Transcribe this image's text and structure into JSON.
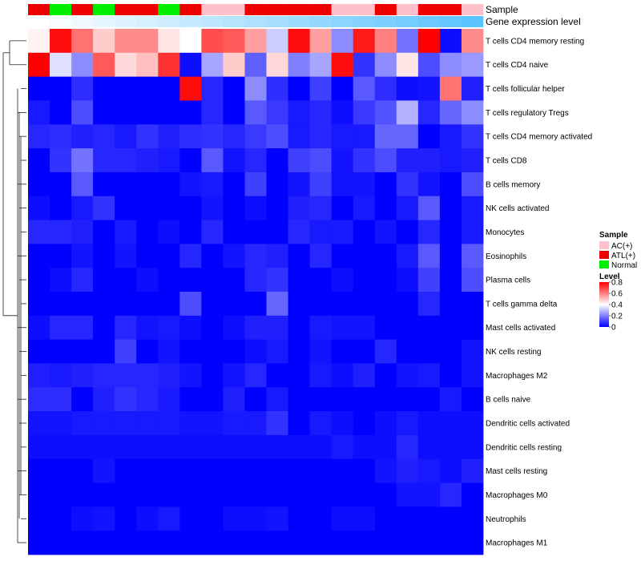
{
  "chart_data": {
    "type": "heatmap",
    "title": "",
    "annotation_rows": [
      {
        "name": "Sample",
        "values": [
          "ATL(+)",
          "Normal",
          "ATL(+)",
          "Normal",
          "ATL(+)",
          "ATL(+)",
          "Normal",
          "ATL(+)",
          "AC(+)",
          "AC(+)",
          "ATL(+)",
          "ATL(+)",
          "ATL(+)",
          "ATL(+)",
          "AC(+)",
          "AC(+)",
          "ATL(+)",
          "AC(+)",
          "ATL(+)",
          "ATL(+)",
          "AC(+)"
        ]
      },
      {
        "name": "Gene expression level",
        "values": [
          0,
          0.05,
          0.1,
          0.15,
          0.2,
          0.25,
          0.3,
          0.35,
          0.4,
          0.45,
          0.5,
          0.55,
          0.6,
          0.65,
          0.7,
          0.75,
          0.8,
          0.85,
          0.9,
          0.95,
          1.0
        ]
      }
    ],
    "rows": [
      {
        "label": "T cells CD4 memory resting",
        "values": [
          0.42,
          0.78,
          0.62,
          0.48,
          0.58,
          0.58,
          0.44,
          0.4,
          0.68,
          0.66,
          0.55,
          0.32,
          0.78,
          0.55,
          0.22,
          0.76,
          0.6,
          0.18,
          0.8,
          0.02,
          0.58
        ]
      },
      {
        "label": "T cells CD4 naive",
        "values": [
          0.8,
          0.35,
          0.22,
          0.66,
          0.46,
          0.5,
          0.72,
          0.02,
          0.26,
          0.48,
          0.15,
          0.46,
          0.2,
          0.26,
          0.78,
          0.08,
          0.22,
          0.44,
          0.12,
          0.22,
          0.24
        ]
      },
      {
        "label": "T cells follicular helper",
        "values": [
          0.0,
          0.0,
          0.07,
          0.0,
          0.0,
          0.0,
          0.0,
          0.78,
          0.06,
          0.0,
          0.22,
          0.07,
          0.0,
          0.1,
          0.0,
          0.14,
          0.07,
          0.02,
          0.03,
          0.62,
          0.05
        ]
      },
      {
        "label": "T cells regulatory  Tregs",
        "values": [
          0.04,
          0.0,
          0.12,
          0.0,
          0.0,
          0.0,
          0.0,
          0.0,
          0.06,
          0.0,
          0.14,
          0.09,
          0.04,
          0.06,
          0.02,
          0.09,
          0.13,
          0.28,
          0.06,
          0.16,
          0.22
        ]
      },
      {
        "label": "T cells CD4 memory activated",
        "values": [
          0.06,
          0.07,
          0.05,
          0.06,
          0.04,
          0.08,
          0.05,
          0.07,
          0.08,
          0.06,
          0.09,
          0.12,
          0.04,
          0.06,
          0.04,
          0.04,
          0.16,
          0.16,
          0.0,
          0.04,
          0.08
        ]
      },
      {
        "label": "T cells CD8",
        "values": [
          0.0,
          0.08,
          0.18,
          0.06,
          0.06,
          0.05,
          0.04,
          0.0,
          0.14,
          0.03,
          0.06,
          0.0,
          0.1,
          0.12,
          0.03,
          0.08,
          0.12,
          0.05,
          0.05,
          0.04,
          0.05
        ]
      },
      {
        "label": "B cells memory",
        "values": [
          0.0,
          0.0,
          0.14,
          0.0,
          0.0,
          0.0,
          0.0,
          0.03,
          0.04,
          0.0,
          0.1,
          0.0,
          0.03,
          0.1,
          0.03,
          0.03,
          0.0,
          0.08,
          0.03,
          0.0,
          0.12
        ]
      },
      {
        "label": "NK cells activated",
        "values": [
          0.02,
          0.0,
          0.04,
          0.08,
          0.0,
          0.0,
          0.0,
          0.0,
          0.03,
          0.0,
          0.02,
          0.0,
          0.05,
          0.06,
          0.0,
          0.04,
          0.0,
          0.04,
          0.14,
          0.0,
          0.04
        ]
      },
      {
        "label": "Monocytes",
        "values": [
          0.06,
          0.06,
          0.05,
          0.0,
          0.04,
          0.0,
          0.02,
          0.0,
          0.06,
          0.0,
          0.0,
          0.0,
          0.06,
          0.04,
          0.04,
          0.0,
          0.03,
          0.0,
          0.06,
          0.0,
          0.04
        ]
      },
      {
        "label": "Eosinophils",
        "values": [
          0.0,
          0.0,
          0.03,
          0.0,
          0.03,
          0.0,
          0.0,
          0.06,
          0.0,
          0.03,
          0.06,
          0.05,
          0.0,
          0.06,
          0.0,
          0.0,
          0.0,
          0.04,
          0.14,
          0.0,
          0.14
        ]
      },
      {
        "label": "Plasma cells",
        "values": [
          0.0,
          0.02,
          0.06,
          0.0,
          0.0,
          0.02,
          0.0,
          0.0,
          0.0,
          0.0,
          0.06,
          0.08,
          0.0,
          0.0,
          0.02,
          0.0,
          0.0,
          0.02,
          0.1,
          0.0,
          0.12
        ]
      },
      {
        "label": "T cells gamma delta",
        "values": [
          0.0,
          0.0,
          0.0,
          0.0,
          0.0,
          0.0,
          0.0,
          0.12,
          0.0,
          0.0,
          0.0,
          0.16,
          0.0,
          0.0,
          0.0,
          0.0,
          0.0,
          0.0,
          0.06,
          0.0,
          0.0
        ]
      },
      {
        "label": "Mast cells activated",
        "values": [
          0.02,
          0.06,
          0.06,
          0.0,
          0.06,
          0.03,
          0.04,
          0.02,
          0.0,
          0.02,
          0.05,
          0.05,
          0.0,
          0.04,
          0.03,
          0.03,
          0.0,
          0.0,
          0.0,
          0.0,
          0.0
        ]
      },
      {
        "label": "NK cells resting",
        "values": [
          0.0,
          0.0,
          0.0,
          0.0,
          0.1,
          0.0,
          0.03,
          0.0,
          0.0,
          0.0,
          0.02,
          0.04,
          0.0,
          0.03,
          0.0,
          0.0,
          0.06,
          0.0,
          0.0,
          0.0,
          0.03
        ]
      },
      {
        "label": "Macrophages M2",
        "values": [
          0.05,
          0.04,
          0.05,
          0.06,
          0.06,
          0.06,
          0.05,
          0.03,
          0.0,
          0.03,
          0.06,
          0.0,
          0.0,
          0.04,
          0.02,
          0.05,
          0.0,
          0.03,
          0.04,
          0.0,
          0.03
        ]
      },
      {
        "label": "B cells naive",
        "values": [
          0.07,
          0.07,
          0.0,
          0.05,
          0.08,
          0.06,
          0.04,
          0.0,
          0.0,
          0.05,
          0.0,
          0.04,
          0.0,
          0.0,
          0.0,
          0.0,
          0.0,
          0.0,
          0.0,
          0.04,
          0.0
        ]
      },
      {
        "label": "Dendritic cells activated",
        "values": [
          0.03,
          0.03,
          0.04,
          0.04,
          0.04,
          0.04,
          0.04,
          0.03,
          0.03,
          0.04,
          0.04,
          0.08,
          0.0,
          0.04,
          0.02,
          0.0,
          0.02,
          0.04,
          0.02,
          0.02,
          0.02
        ]
      },
      {
        "label": "Dendritic cells resting",
        "values": [
          0.02,
          0.02,
          0.02,
          0.02,
          0.02,
          0.02,
          0.02,
          0.02,
          0.02,
          0.02,
          0.02,
          0.02,
          0.02,
          0.02,
          0.04,
          0.02,
          0.02,
          0.06,
          0.02,
          0.02,
          0.02
        ]
      },
      {
        "label": "Mast cells resting",
        "values": [
          0.0,
          0.0,
          0.0,
          0.03,
          0.0,
          0.0,
          0.0,
          0.0,
          0.0,
          0.0,
          0.0,
          0.0,
          0.0,
          0.0,
          0.0,
          0.0,
          0.03,
          0.05,
          0.04,
          0.02,
          0.05
        ]
      },
      {
        "label": "Macrophages M0",
        "values": [
          0.0,
          0.0,
          0.0,
          0.0,
          0.0,
          0.0,
          0.0,
          0.0,
          0.0,
          0.0,
          0.0,
          0.0,
          0.0,
          0.0,
          0.0,
          0.0,
          0.0,
          0.03,
          0.03,
          0.06,
          0.0
        ]
      },
      {
        "label": "Neutrophils",
        "values": [
          0.0,
          0.0,
          0.02,
          0.03,
          0.0,
          0.02,
          0.04,
          0.0,
          0.0,
          0.02,
          0.02,
          0.03,
          0.0,
          0.0,
          0.02,
          0.02,
          0.0,
          0.0,
          0.0,
          0.0,
          0.0
        ]
      },
      {
        "label": "Macrophages M1",
        "values": [
          0.0,
          0.0,
          0.0,
          0.0,
          0.0,
          0.0,
          0.0,
          0.0,
          0.0,
          0.0,
          0.0,
          0.0,
          0.0,
          0.0,
          0.0,
          0.0,
          0.0,
          0.0,
          0.0,
          0.0,
          0.0
        ]
      }
    ],
    "color_scale": {
      "low": "#0000ff",
      "mid": "#ffffff",
      "high": "#ff0000",
      "domain": [
        0,
        0.8
      ],
      "mid_value": 0.4
    },
    "gene_scale": {
      "low": "#ffffff",
      "high": "#5bc3ff"
    },
    "sample_colors": {
      "AC(+)": "#ffc0cb",
      "ATL(+)": "#ee0000",
      "Normal": "#00ee00"
    },
    "legend": {
      "position": "right",
      "sample_title": "Sample",
      "sample_items": [
        "AC(+)",
        "ATL(+)",
        "Normal"
      ],
      "level_title": "Level",
      "level_ticks": [
        "0.8",
        "0.6",
        "0.4",
        "0.2",
        "0"
      ],
      "level_tick_values": [
        0.8,
        0.6,
        0.4,
        0.2,
        0
      ]
    }
  }
}
